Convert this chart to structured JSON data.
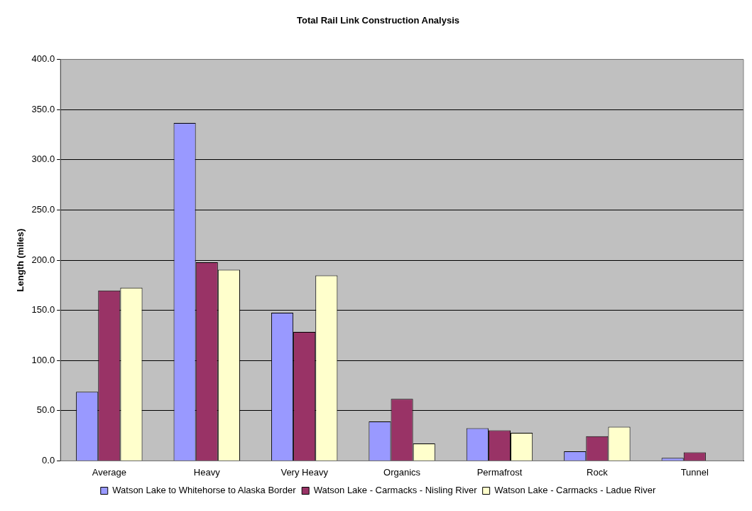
{
  "chart_data": {
    "type": "bar",
    "title": "Total Rail Link Construction Analysis",
    "ylabel": "Length (miles)",
    "categories": [
      "Average",
      "Heavy",
      "Very Heavy",
      "Organics",
      "Permafrost",
      "Rock",
      "Tunnel"
    ],
    "series": [
      {
        "name": "Watson Lake to Whitehorse to Alaska Border",
        "color": "#9999ff",
        "values": [
          68.8,
          336.6,
          147.6,
          39.3,
          32.5,
          9.5,
          3.0
        ]
      },
      {
        "name": "Watson Lake - Carmacks - Nisling River",
        "color": "#993366",
        "values": [
          169.7,
          197.8,
          128.5,
          61.8,
          30.4,
          24.6,
          8.4
        ]
      },
      {
        "name": "Watson Lake - Carmacks - Ladue River",
        "color": "#ffffcc",
        "values": [
          172.5,
          190.4,
          184.8,
          17.2,
          27.9,
          33.9,
          0
        ]
      }
    ],
    "ylim": [
      0,
      400
    ],
    "yticks": [
      {
        "value": 0,
        "label": "0.0"
      },
      {
        "value": 50,
        "label": "50.0"
      },
      {
        "value": 100,
        "label": "100.0"
      },
      {
        "value": 150,
        "label": "150.0"
      },
      {
        "value": 200,
        "label": "200.0"
      },
      {
        "value": 250,
        "label": "250.0"
      },
      {
        "value": 300,
        "label": "300.0"
      },
      {
        "value": 350,
        "label": "350.0"
      },
      {
        "value": 400,
        "label": "400.0"
      }
    ],
    "grid": "y",
    "legend": "bottom"
  }
}
